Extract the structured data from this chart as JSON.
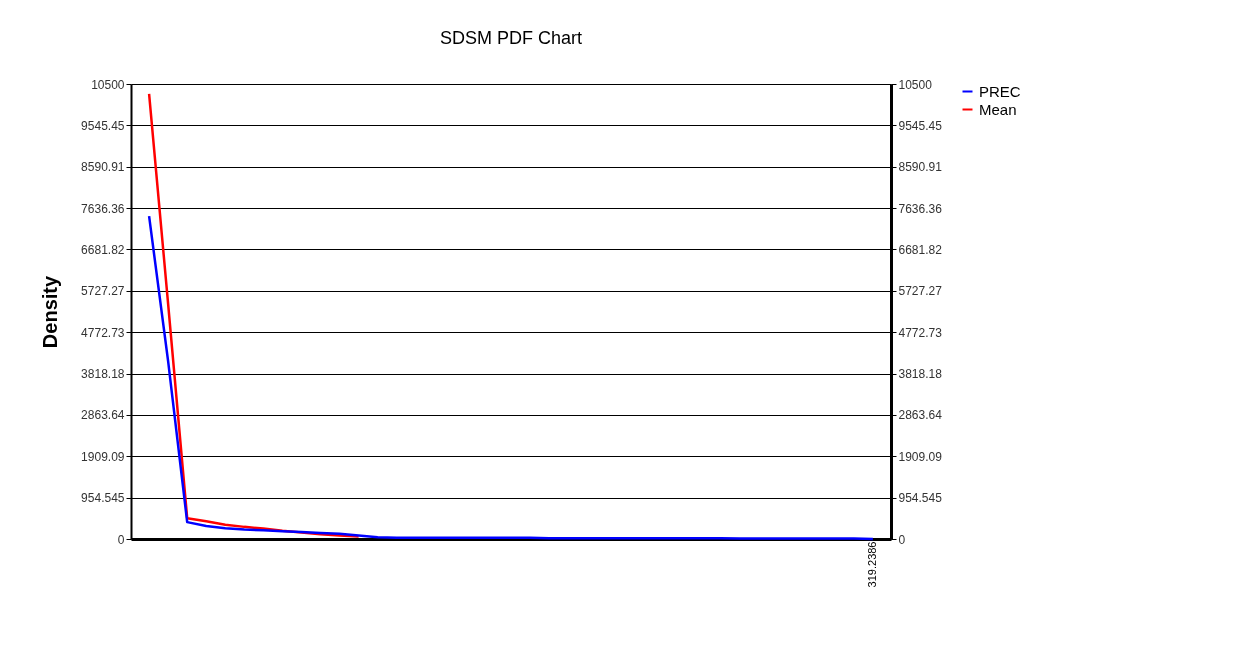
{
  "chart_data": {
    "type": "line",
    "title": "SDSM PDF Chart",
    "ylabel": "Density",
    "categories": [
      null,
      null,
      null,
      null,
      null,
      null,
      null,
      null,
      null,
      null,
      null,
      null,
      null,
      null,
      null,
      null,
      null,
      null,
      null,
      null,
      null,
      null,
      null,
      null,
      null,
      null,
      null,
      null,
      null,
      null,
      null,
      null,
      null,
      null,
      null,
      null,
      null,
      null,
      "319.2386"
    ],
    "ylim": [
      0,
      10500
    ],
    "yticks": [
      0,
      954.545,
      1909.09,
      2863.64,
      3818.18,
      4772.73,
      5727.27,
      6681.82,
      7636.36,
      8590.91,
      9545.45,
      10500
    ],
    "y2lim": [
      0,
      10500
    ],
    "y2ticks": [
      0,
      954.545,
      1909.09,
      2863.64,
      3818.18,
      4772.73,
      5727.27,
      6681.82,
      7636.36,
      8590.91,
      9545.45,
      10500
    ],
    "grid": "y",
    "legend": "right",
    "line_style": "solid",
    "marker": "none",
    "series": [
      {
        "name": "Mean",
        "color": "#ff0000",
        "values": [
          10270,
          5420,
          480,
          410,
          330,
          280,
          240,
          190,
          150,
          110,
          80,
          60,
          null,
          null,
          null,
          null,
          null,
          null,
          null,
          null,
          null,
          null,
          null,
          null,
          null,
          null,
          null,
          null,
          null,
          null,
          null,
          null,
          null,
          null,
          null,
          null,
          null,
          null,
          null
        ]
      },
      {
        "name": "PREC",
        "color": "#0000ff",
        "values": [
          7450,
          4100,
          390,
          300,
          250,
          220,
          200,
          180,
          160,
          140,
          120,
          80,
          40,
          30,
          30,
          30,
          30,
          30,
          30,
          30,
          30,
          20,
          20,
          20,
          20,
          20,
          20,
          20,
          20,
          20,
          20,
          10,
          10,
          10,
          10,
          10,
          10,
          10,
          0
        ]
      }
    ]
  }
}
